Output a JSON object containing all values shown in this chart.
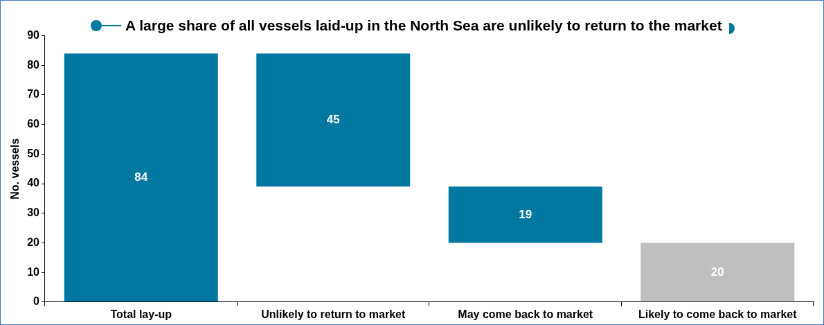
{
  "chart_data": {
    "type": "bar",
    "title": "A large share of all vessels laid-up in the North Sea are unlikely to return to the market",
    "ylabel": "No. vessels",
    "categories": [
      "Total lay-up",
      "Unlikely to return to market",
      "May come back to market",
      "Likely to come back to market"
    ],
    "values": [
      84,
      45,
      19,
      20
    ],
    "base": [
      0,
      39,
      20,
      0
    ],
    "colors": [
      "#00789f",
      "#00789f",
      "#00789f",
      "#bfbfbf"
    ],
    "ylim": [
      0,
      90
    ],
    "yticks": [
      0,
      10,
      20,
      30,
      40,
      50,
      60,
      70,
      80,
      90
    ],
    "grid": false,
    "legend": false,
    "data_labels": true
  }
}
